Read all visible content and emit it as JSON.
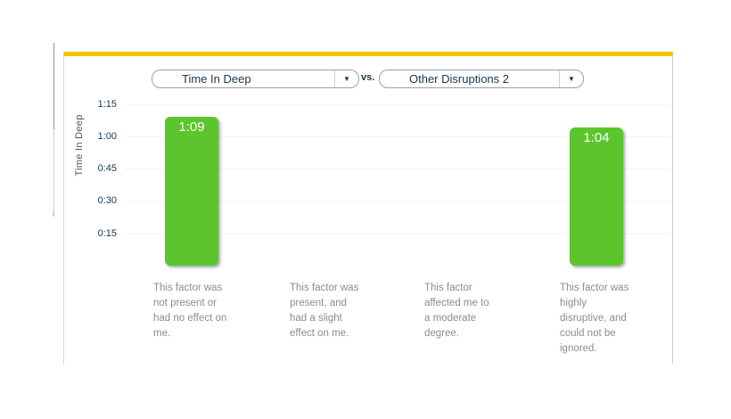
{
  "colors": {
    "accent_top_bar": "#f5c400",
    "bar_fill": "#5cc52e",
    "selector_text": "#17374e",
    "category_text": "#8c8c8c"
  },
  "selectors": {
    "metric": {
      "value": "Time In Deep"
    },
    "vs_label": "vs.",
    "factor": {
      "value": "Other Disruptions 2"
    }
  },
  "chart_data": {
    "type": "bar",
    "title": "",
    "ylabel": "Time In Deep",
    "xlabel": "",
    "grid": "faint horizontal",
    "legend": "none",
    "ylim_minutes": [
      0,
      97
    ],
    "yticks": [
      {
        "label": "1:15",
        "minutes": 75
      },
      {
        "label": "1:00",
        "minutes": 60
      },
      {
        "label": "0:45",
        "minutes": 45
      },
      {
        "label": "0:30",
        "minutes": 30
      },
      {
        "label": "0:15",
        "minutes": 15
      }
    ],
    "categories": [
      {
        "lines": [
          "This factor was",
          "not present or",
          "had no effect on",
          "me."
        ]
      },
      {
        "lines": [
          "This factor was",
          "present, and",
          "had a slight",
          "effect on me."
        ]
      },
      {
        "lines": [
          "This factor",
          "affected me to",
          "a moderate",
          "degree."
        ]
      },
      {
        "lines": [
          "This factor was",
          "highly",
          "disruptive, and",
          "could not be",
          "ignored."
        ]
      }
    ],
    "values": [
      {
        "label": "1:09",
        "minutes": 69
      },
      {
        "label": "",
        "minutes": 0
      },
      {
        "label": "",
        "minutes": 0
      },
      {
        "label": "1:04",
        "minutes": 64
      }
    ],
    "bar_color": "#5cc52e"
  }
}
